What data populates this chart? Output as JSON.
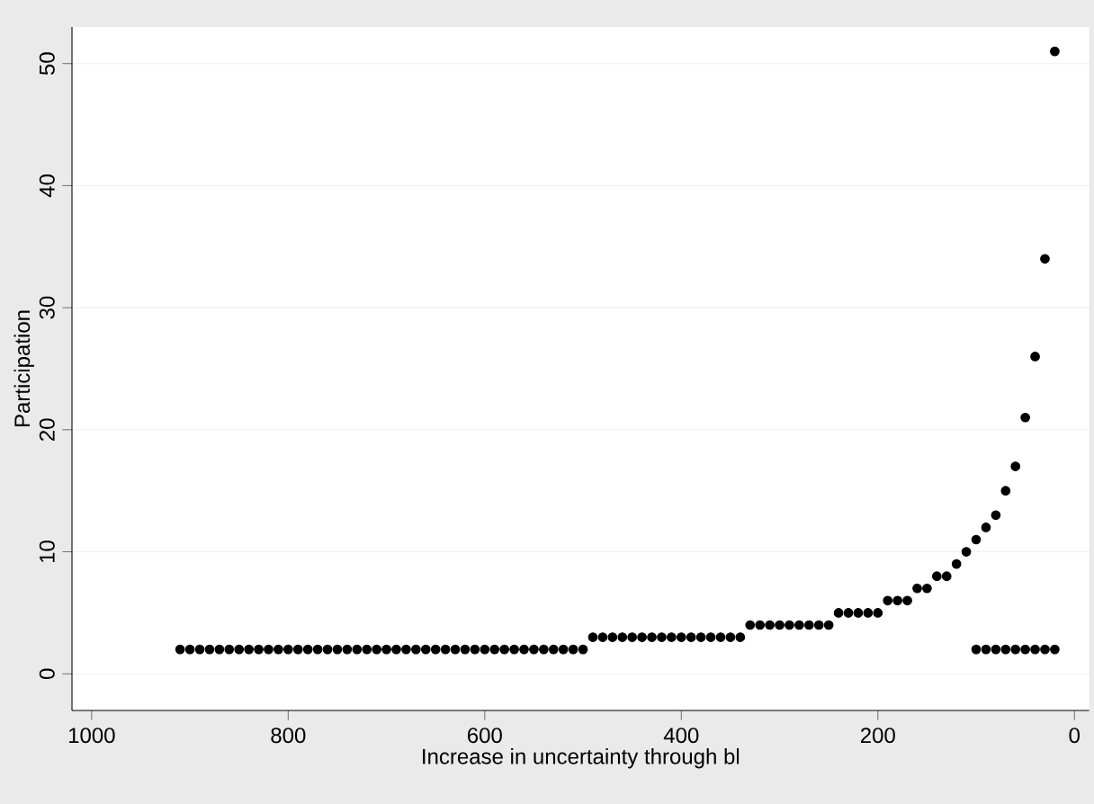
{
  "chart_data": {
    "type": "scatter",
    "xlabel": "Increase in uncertainty through bl",
    "ylabel": "Participation",
    "xlim": [
      1020,
      -15
    ],
    "xticks": [
      1000,
      800,
      600,
      400,
      200,
      0
    ],
    "ylim": [
      -3,
      53
    ],
    "yticks": [
      0,
      10,
      20,
      30,
      40,
      50
    ],
    "grid": "y",
    "marker": "circle",
    "series": [
      {
        "color": "#000000",
        "x": [
          910,
          900,
          890,
          880,
          870,
          860,
          850,
          840,
          830,
          820,
          810,
          800,
          790,
          780,
          770,
          760,
          750,
          740,
          730,
          720,
          710,
          700,
          690,
          680,
          670,
          660,
          650,
          640,
          630,
          620,
          610,
          600,
          590,
          580,
          570,
          560,
          550,
          540,
          530,
          520,
          510,
          500,
          490,
          480,
          470,
          460,
          450,
          440,
          430,
          420,
          410,
          400,
          390,
          380,
          370,
          360,
          350,
          340,
          330,
          320,
          310,
          300,
          290,
          280,
          270,
          260,
          250,
          240,
          230,
          220,
          210,
          200,
          190,
          180,
          170,
          160,
          150,
          140,
          130,
          120,
          110,
          100,
          90,
          80,
          70,
          60,
          50,
          40,
          30,
          20,
          100,
          90,
          80,
          70,
          60,
          50,
          40,
          30,
          20
        ],
        "values": [
          2,
          2,
          2,
          2,
          2,
          2,
          2,
          2,
          2,
          2,
          2,
          2,
          2,
          2,
          2,
          2,
          2,
          2,
          2,
          2,
          2,
          2,
          2,
          2,
          2,
          2,
          2,
          2,
          2,
          2,
          2,
          2,
          2,
          2,
          2,
          2,
          2,
          2,
          2,
          2,
          2,
          2,
          3,
          3,
          3,
          3,
          3,
          3,
          3,
          3,
          3,
          3,
          3,
          3,
          3,
          3,
          3,
          3,
          4,
          4,
          4,
          4,
          4,
          4,
          4,
          4,
          4,
          5,
          5,
          5,
          5,
          5,
          6,
          6,
          6,
          7,
          7,
          8,
          8,
          9,
          10,
          11,
          12,
          13,
          15,
          17,
          21,
          26,
          34,
          51,
          2,
          2,
          2,
          2,
          2,
          2,
          2,
          2,
          2
        ]
      }
    ]
  }
}
